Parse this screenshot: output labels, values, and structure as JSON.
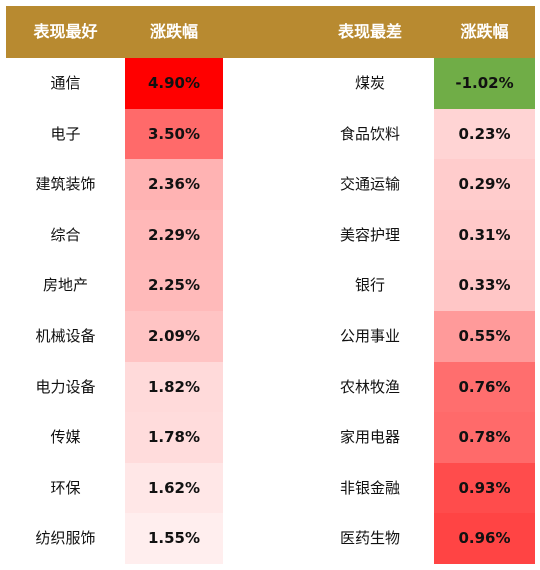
{
  "chart_data": {
    "type": "table",
    "headers": [
      "表现最好",
      "涨跌幅",
      "表现最差",
      "涨跌幅"
    ],
    "best": [
      {
        "name": "通信",
        "value": 4.9,
        "label": "4.90%",
        "color": "#ff0000"
      },
      {
        "name": "电子",
        "value": 3.5,
        "label": "3.50%",
        "color": "#ff6a6a"
      },
      {
        "name": "建筑装饰",
        "value": 2.36,
        "label": "2.36%",
        "color": "#ffb3b3"
      },
      {
        "name": "综合",
        "value": 2.29,
        "label": "2.29%",
        "color": "#ffb8b8"
      },
      {
        "name": "房地产",
        "value": 2.25,
        "label": "2.25%",
        "color": "#ffbaba"
      },
      {
        "name": "机械设备",
        "value": 2.09,
        "label": "2.09%",
        "color": "#ffc4c4"
      },
      {
        "name": "电力设备",
        "value": 1.82,
        "label": "1.82%",
        "color": "#ffdada"
      },
      {
        "name": "传媒",
        "value": 1.78,
        "label": "1.78%",
        "color": "#ffdcdc"
      },
      {
        "name": "环保",
        "value": 1.62,
        "label": "1.62%",
        "color": "#ffe7e7"
      },
      {
        "name": "纺织服饰",
        "value": 1.55,
        "label": "1.55%",
        "color": "#ffeeee"
      }
    ],
    "worst": [
      {
        "name": "煤炭",
        "value": -1.02,
        "label": "-1.02%",
        "color": "#70ad47"
      },
      {
        "name": "食品饮料",
        "value": 0.23,
        "label": "0.23%",
        "color": "#ffd4d4"
      },
      {
        "name": "交通运输",
        "value": 0.29,
        "label": "0.29%",
        "color": "#ffcccc"
      },
      {
        "name": "美容护理",
        "value": 0.31,
        "label": "0.31%",
        "color": "#ffc9c9"
      },
      {
        "name": "银行",
        "value": 0.33,
        "label": "0.33%",
        "color": "#ffc6c6"
      },
      {
        "name": "公用事业",
        "value": 0.55,
        "label": "0.55%",
        "color": "#ff9a9a"
      },
      {
        "name": "农林牧渔",
        "value": 0.76,
        "label": "0.76%",
        "color": "#ff6e6e"
      },
      {
        "name": "家用电器",
        "value": 0.78,
        "label": "0.78%",
        "color": "#ff6a6a"
      },
      {
        "name": "非银金融",
        "value": 0.93,
        "label": "0.93%",
        "color": "#ff4c4c"
      },
      {
        "name": "医药生物",
        "value": 0.96,
        "label": "0.96%",
        "color": "#ff4444"
      }
    ]
  },
  "colors": {
    "header_bg": "#b88a30",
    "header_text": "#ffffff"
  }
}
